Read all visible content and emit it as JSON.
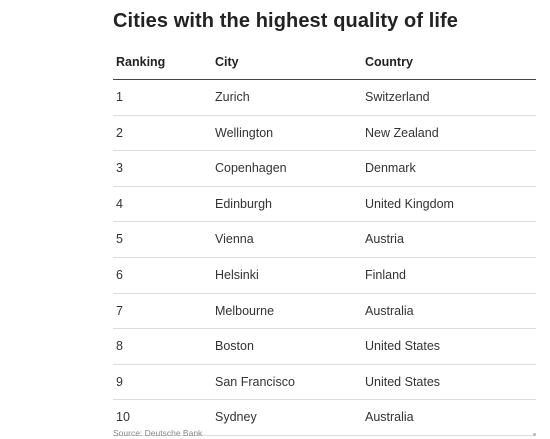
{
  "chart_data": {
    "type": "table",
    "title": "Cities with the highest quality of life",
    "columns": [
      "Ranking",
      "City",
      "Country"
    ],
    "rows": [
      [
        "1",
        "Zurich",
        "Switzerland"
      ],
      [
        "2",
        "Wellington",
        "New Zealand"
      ],
      [
        "3",
        "Copenhagen",
        "Denmark"
      ],
      [
        "4",
        "Edinburgh",
        "United Kingdom"
      ],
      [
        "5",
        "Vienna",
        "Austria"
      ],
      [
        "6",
        "Helsinki",
        "Finland"
      ],
      [
        "7",
        "Melbourne",
        "Australia"
      ],
      [
        "8",
        "Boston",
        "United States"
      ],
      [
        "9",
        "San Francisco",
        "United States"
      ],
      [
        "10",
        "Sydney",
        "Australia"
      ]
    ],
    "source": "Source: Deutsche Bank"
  }
}
